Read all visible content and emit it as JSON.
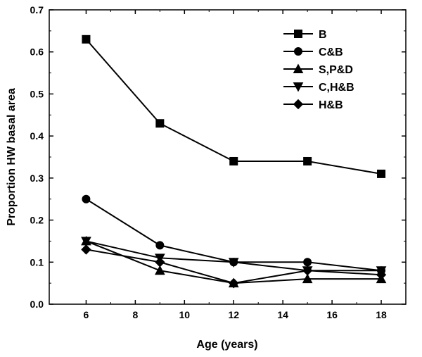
{
  "chart_data": {
    "type": "line",
    "title": "",
    "xlabel": "Age (years)",
    "ylabel": "Proportion HW basal area",
    "xlim": [
      4.5,
      19
    ],
    "ylim": [
      0,
      0.7
    ],
    "x_ticks": [
      6,
      8,
      10,
      12,
      14,
      16,
      18
    ],
    "y_ticks": [
      0.0,
      0.1,
      0.2,
      0.3,
      0.4,
      0.5,
      0.6,
      0.7
    ],
    "y_tick_labels": [
      "0.0",
      "0.1",
      "0.2",
      "0.3",
      "0.4",
      "0.5",
      "0.6",
      "0.7"
    ],
    "grid": false,
    "legend_position": "top-right",
    "x": [
      6,
      9,
      12,
      15,
      18
    ],
    "series": [
      {
        "name": "B",
        "marker": "square",
        "values": [
          0.63,
          0.43,
          0.34,
          0.34,
          0.31
        ]
      },
      {
        "name": "C&B",
        "marker": "circle",
        "values": [
          0.25,
          0.14,
          0.1,
          0.1,
          0.08
        ]
      },
      {
        "name": "S,P&D",
        "marker": "triangle-up",
        "values": [
          0.15,
          0.08,
          0.05,
          0.06,
          0.06
        ]
      },
      {
        "name": "C,H&B",
        "marker": "triangle-down",
        "values": [
          0.15,
          0.11,
          0.1,
          0.08,
          0.08
        ]
      },
      {
        "name": "H&B",
        "marker": "diamond",
        "values": [
          0.13,
          0.1,
          0.05,
          0.08,
          0.07
        ]
      }
    ],
    "colors": {
      "line": "#000000",
      "background": "#ffffff"
    }
  }
}
